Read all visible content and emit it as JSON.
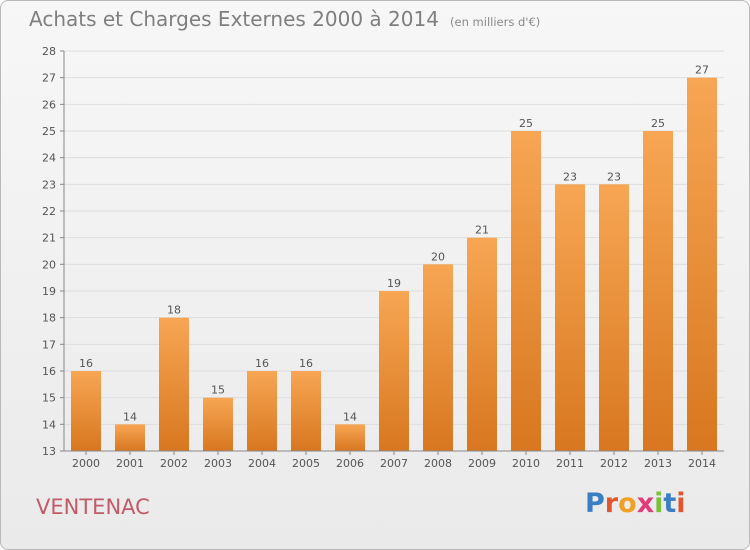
{
  "title": "Achats et Charges Externes 2000 à 2014",
  "subtitle": "(en milliers d'€)",
  "location": "VENTENAC",
  "logo": {
    "text": "Proxiti",
    "letter_colors": [
      "#3a7fc4",
      "#e2562f",
      "#f0a024",
      "#e23b7a",
      "#7cbf3a",
      "#3a7fc4",
      "#e2562f"
    ]
  },
  "colors": {
    "bar_light": "#f7a654",
    "bar_dark": "#d8771f",
    "grid": "#dedede",
    "axis_text": "#555555",
    "location_text": "#c25a68"
  },
  "chart_data": {
    "type": "bar",
    "title": "Achats et Charges Externes 2000 à 2014",
    "subtitle": "(en milliers d'€)",
    "categories": [
      "2000",
      "2001",
      "2002",
      "2003",
      "2004",
      "2005",
      "2006",
      "2007",
      "2008",
      "2009",
      "2010",
      "2011",
      "2012",
      "2013",
      "2014"
    ],
    "values": [
      16,
      14,
      18,
      15,
      16,
      16,
      14,
      19,
      20,
      21,
      25,
      23,
      23,
      25,
      27
    ],
    "ylim": [
      13,
      28
    ],
    "yticks": [
      13,
      14,
      15,
      16,
      17,
      18,
      19,
      20,
      21,
      22,
      23,
      24,
      25,
      26,
      27,
      28
    ],
    "grid": true,
    "data_labels": true
  }
}
